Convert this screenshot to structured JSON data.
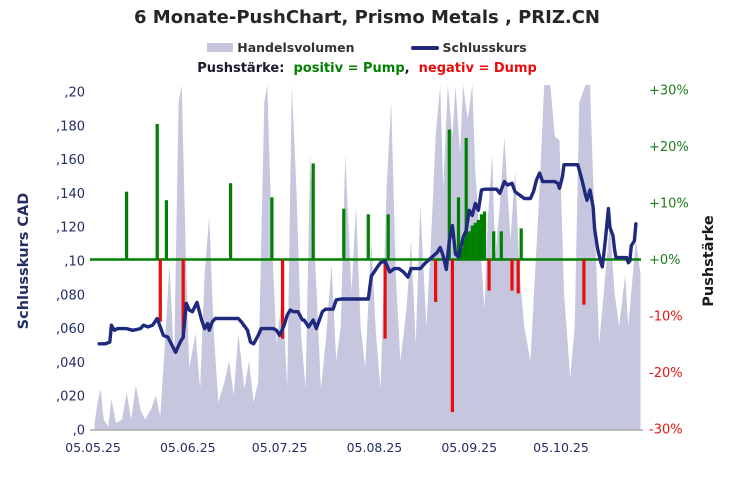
{
  "title": "6 Monate-PushChart,  Prismo Metals , PRIZ.CN",
  "legend": {
    "volume_label": "Handelsvolumen",
    "close_label": "Schlusskurs"
  },
  "subtitle": {
    "prefix": "Pushstärke:",
    "positive": "positiv = Pump",
    "separator": ",",
    "negative": "negativ = Dump"
  },
  "colors": {
    "volume_area": "#c7c6df",
    "close_line": "#1f2a7e",
    "positive": "#008000",
    "negative": "#e80c0c",
    "zero_line": "#008000",
    "axis_navy": "#232d66",
    "title_text": "#262626",
    "baseline_gray": "#ababab",
    "right_pos_label": "#1e7d1e",
    "right_neg_label": "#e81414"
  },
  "axes": {
    "left_title": "Schlusskurs CAD",
    "right_title": "Pushstärke",
    "left_ticks": [
      {
        "label": ",20",
        "v": 0.2
      },
      {
        "label": ",180",
        "v": 0.18
      },
      {
        "label": ",160",
        "v": 0.16
      },
      {
        "label": ",140",
        "v": 0.14
      },
      {
        "label": ",120",
        "v": 0.12
      },
      {
        "label": ",10",
        "v": 0.1
      },
      {
        "label": ",080",
        "v": 0.08
      },
      {
        "label": ",060",
        "v": 0.06
      },
      {
        "label": ",040",
        "v": 0.04
      },
      {
        "label": ",020",
        "v": 0.02
      },
      {
        "label": ",0",
        "v": 0.0
      }
    ],
    "right_ticks": [
      {
        "label": "+30%",
        "p": 30
      },
      {
        "label": "+20%",
        "p": 20
      },
      {
        "label": "+10%",
        "p": 10
      },
      {
        "label": "+0%",
        "p": 0
      },
      {
        "label": "-10%",
        "p": -10
      },
      {
        "label": "-20%",
        "p": -20
      },
      {
        "label": "-30%",
        "p": -30
      }
    ],
    "x_ticks": [
      {
        "label": "05.05.25",
        "d": 0
      },
      {
        "label": "05.06.25",
        "d": 31
      },
      {
        "label": "05.07.25",
        "d": 61
      },
      {
        "label": "05.08.25",
        "d": 92
      },
      {
        "label": "05.09.25",
        "d": 123
      },
      {
        "label": "05.10.25",
        "d": 153
      }
    ]
  },
  "chart_data": {
    "type": "composite",
    "x_unit": "days_since_05.05.25",
    "x_range": [
      0,
      179
    ],
    "left_axis": {
      "label": "Schlusskurs CAD",
      "range": [
        0,
        0.2
      ]
    },
    "right_axis": {
      "label": "Pushstärke",
      "range": [
        -30,
        30
      ],
      "unit": "%"
    },
    "series": [
      {
        "name": "Handelsvolumen",
        "type": "area",
        "unit": "relative_percent_of_max",
        "points": [
          [
            0.5,
            2
          ],
          [
            1.5,
            8
          ],
          [
            2.5,
            12
          ],
          [
            3.5,
            3
          ],
          [
            5,
            1
          ],
          [
            6,
            9
          ],
          [
            7.5,
            2
          ],
          [
            9.5,
            3
          ],
          [
            11,
            11
          ],
          [
            12.5,
            3
          ],
          [
            14,
            13
          ],
          [
            15.5,
            6
          ],
          [
            17,
            3
          ],
          [
            19,
            6
          ],
          [
            20.5,
            10
          ],
          [
            22,
            4
          ],
          [
            23.5,
            25
          ],
          [
            25,
            48
          ],
          [
            26.5,
            20
          ],
          [
            28,
            95
          ],
          [
            29,
            100
          ],
          [
            30.5,
            45
          ],
          [
            31.5,
            18
          ],
          [
            33.5,
            28
          ],
          [
            35,
            12
          ],
          [
            36.5,
            45
          ],
          [
            38,
            62
          ],
          [
            39.5,
            28
          ],
          [
            41,
            8
          ],
          [
            43,
            14
          ],
          [
            44.5,
            20
          ],
          [
            46,
            10
          ],
          [
            47.5,
            28
          ],
          [
            49.5,
            12
          ],
          [
            51,
            20
          ],
          [
            52.5,
            8
          ],
          [
            54,
            14
          ],
          [
            56,
            95
          ],
          [
            57,
            100
          ],
          [
            58.5,
            55
          ],
          [
            60,
            25
          ],
          [
            62,
            40
          ],
          [
            63.5,
            12
          ],
          [
            65,
            100
          ],
          [
            66.5,
            70
          ],
          [
            68,
            28
          ],
          [
            69.5,
            12
          ],
          [
            71,
            80
          ],
          [
            73,
            42
          ],
          [
            74.5,
            12
          ],
          [
            76,
            25
          ],
          [
            78,
            48
          ],
          [
            79.5,
            20
          ],
          [
            81,
            30
          ],
          [
            82.5,
            80
          ],
          [
            84.5,
            40
          ],
          [
            86,
            65
          ],
          [
            87.5,
            30
          ],
          [
            89,
            18
          ],
          [
            91,
            55
          ],
          [
            92.5,
            28
          ],
          [
            94,
            12
          ],
          [
            96,
            70
          ],
          [
            97.5,
            95
          ],
          [
            99,
            45
          ],
          [
            100.5,
            20
          ],
          [
            102.5,
            35
          ],
          [
            104,
            55
          ],
          [
            105.5,
            25
          ],
          [
            107,
            65
          ],
          [
            109,
            30
          ],
          [
            110.5,
            55
          ],
          [
            112,
            85
          ],
          [
            113.5,
            100
          ],
          [
            114.5,
            70
          ],
          [
            116,
            100
          ],
          [
            117.5,
            85
          ],
          [
            118.5,
            100
          ],
          [
            120,
            80
          ],
          [
            121,
            100
          ],
          [
            122.5,
            90
          ],
          [
            124,
            100
          ],
          [
            125,
            75
          ],
          [
            126.5,
            55
          ],
          [
            128,
            35
          ],
          [
            129,
            60
          ],
          [
            130.5,
            80
          ],
          [
            131.5,
            50
          ],
          [
            133,
            65
          ],
          [
            134.5,
            85
          ],
          [
            136.5,
            55
          ],
          [
            138,
            75
          ],
          [
            139.5,
            45
          ],
          [
            141,
            30
          ],
          [
            143,
            20
          ],
          [
            144.5,
            45
          ],
          [
            146,
            70
          ],
          [
            147.5,
            100
          ],
          [
            149.5,
            100
          ],
          [
            151,
            85
          ],
          [
            152.5,
            84
          ],
          [
            154,
            40
          ],
          [
            156,
            15
          ],
          [
            157.5,
            30
          ],
          [
            159,
            95
          ],
          [
            161,
            100
          ],
          [
            162.5,
            100
          ],
          [
            164,
            60
          ],
          [
            165.5,
            25
          ],
          [
            167.5,
            45
          ],
          [
            169,
            60
          ],
          [
            170.5,
            40
          ],
          [
            172,
            30
          ],
          [
            174,
            45
          ],
          [
            175,
            30
          ],
          [
            176,
            40
          ],
          [
            177.5,
            55
          ],
          [
            179,
            45
          ]
        ]
      },
      {
        "name": "Schlusskurs",
        "type": "line",
        "unit": "CAD",
        "points": [
          [
            2,
            0.051
          ],
          [
            4,
            0.051
          ],
          [
            5.5,
            0.052
          ],
          [
            6,
            0.062
          ],
          [
            7,
            0.059
          ],
          [
            8,
            0.06
          ],
          [
            11,
            0.06
          ],
          [
            13,
            0.059
          ],
          [
            15.5,
            0.06
          ],
          [
            16.5,
            0.062
          ],
          [
            18,
            0.061
          ],
          [
            19.5,
            0.062
          ],
          [
            21,
            0.066
          ],
          [
            23,
            0.056
          ],
          [
            24.5,
            0.055
          ],
          [
            27,
            0.046
          ],
          [
            28.5,
            0.052
          ],
          [
            29.5,
            0.055
          ],
          [
            30.5,
            0.075
          ],
          [
            31.5,
            0.071
          ],
          [
            32.5,
            0.07
          ],
          [
            34,
            0.0755
          ],
          [
            35.5,
            0.065
          ],
          [
            36.5,
            0.06
          ],
          [
            37.5,
            0.063
          ],
          [
            38,
            0.059
          ],
          [
            39,
            0.064
          ],
          [
            40,
            0.066
          ],
          [
            47.5,
            0.066
          ],
          [
            48.5,
            0.064
          ],
          [
            50.5,
            0.059
          ],
          [
            51.5,
            0.052
          ],
          [
            52.5,
            0.051
          ],
          [
            54,
            0.056
          ],
          [
            55,
            0.06
          ],
          [
            59,
            0.06
          ],
          [
            60,
            0.059
          ],
          [
            61,
            0.056
          ],
          [
            62.5,
            0.062
          ],
          [
            63.5,
            0.068
          ],
          [
            64.5,
            0.071
          ],
          [
            65.5,
            0.07
          ],
          [
            67,
            0.07
          ],
          [
            68.5,
            0.065
          ],
          [
            69,
            0.065
          ],
          [
            70.5,
            0.061
          ],
          [
            72,
            0.065
          ],
          [
            73,
            0.06
          ],
          [
            75,
            0.07
          ],
          [
            76,
            0.0715
          ],
          [
            78.5,
            0.0715
          ],
          [
            79.5,
            0.077
          ],
          [
            81,
            0.0775
          ],
          [
            90,
            0.0775
          ],
          [
            91,
            0.091
          ],
          [
            93,
            0.0965
          ],
          [
            94,
            0.099
          ],
          [
            95.5,
            0.1
          ],
          [
            97,
            0.0935
          ],
          [
            98.5,
            0.0955
          ],
          [
            100,
            0.0955
          ],
          [
            101.5,
            0.0935
          ],
          [
            103,
            0.0905
          ],
          [
            104,
            0.0955
          ],
          [
            107,
            0.0955
          ],
          [
            108.5,
            0.0985
          ],
          [
            110,
            0.101
          ],
          [
            112.5,
            0.105
          ],
          [
            113.5,
            0.108
          ],
          [
            114.5,
            0.103
          ],
          [
            115.5,
            0.095
          ],
          [
            116.5,
            0.112
          ],
          [
            117.5,
            0.121
          ],
          [
            118.5,
            0.104
          ],
          [
            119.5,
            0.1025
          ],
          [
            120.5,
            0.11
          ],
          [
            121,
            0.114
          ],
          [
            122,
            0.118
          ],
          [
            123,
            0.13
          ],
          [
            124,
            0.127
          ],
          [
            125,
            0.134
          ],
          [
            126,
            0.13
          ],
          [
            127,
            0.142
          ],
          [
            128,
            0.1425
          ],
          [
            132,
            0.1425
          ],
          [
            133,
            0.14
          ],
          [
            134.5,
            0.147
          ],
          [
            135.5,
            0.145
          ],
          [
            137,
            0.146
          ],
          [
            138,
            0.141
          ],
          [
            139.5,
            0.139
          ],
          [
            141,
            0.137
          ],
          [
            143,
            0.137
          ],
          [
            144,
            0.141
          ],
          [
            145,
            0.148
          ],
          [
            146,
            0.152
          ],
          [
            147,
            0.147
          ],
          [
            149.5,
            0.147
          ],
          [
            151,
            0.147
          ],
          [
            152,
            0.146
          ],
          [
            152.5,
            0.143
          ],
          [
            153.5,
            0.15
          ],
          [
            154,
            0.157
          ],
          [
            158.5,
            0.157
          ],
          [
            160,
            0.147
          ],
          [
            161,
            0.139
          ],
          [
            161.5,
            0.136
          ],
          [
            162.5,
            0.142
          ],
          [
            163.5,
            0.132
          ],
          [
            164,
            0.119
          ],
          [
            165,
            0.107
          ],
          [
            166,
            0.0995
          ],
          [
            166.5,
            0.0965
          ],
          [
            167.5,
            0.112
          ],
          [
            168.5,
            0.131
          ],
          [
            169,
            0.12
          ],
          [
            170,
            0.115
          ],
          [
            170.5,
            0.107
          ],
          [
            171,
            0.102
          ],
          [
            174.5,
            0.102
          ],
          [
            175,
            0.099
          ],
          [
            175.5,
            0.1
          ],
          [
            176,
            0.109
          ],
          [
            177,
            0.112
          ],
          [
            177.5,
            0.122
          ]
        ]
      },
      {
        "name": "Pushstärke positiv (Pump)",
        "type": "bar",
        "unit": "%",
        "points": [
          [
            11,
            12
          ],
          [
            21,
            24
          ],
          [
            24,
            10.5
          ],
          [
            45,
            13.5
          ],
          [
            58.5,
            11
          ],
          [
            72,
            17
          ],
          [
            82,
            9
          ],
          [
            90,
            8
          ],
          [
            96.5,
            8
          ],
          [
            116.5,
            23
          ],
          [
            119.5,
            11
          ],
          [
            120.5,
            2
          ],
          [
            121.5,
            3.5
          ],
          [
            122,
            21.5
          ],
          [
            123,
            5
          ],
          [
            124,
            6
          ],
          [
            125,
            6.5
          ],
          [
            126,
            7
          ],
          [
            127,
            8
          ],
          [
            128,
            8.5
          ],
          [
            131,
            5
          ],
          [
            133.5,
            5
          ],
          [
            140,
            5.5
          ]
        ]
      },
      {
        "name": "Pushstärke negativ (Dump)",
        "type": "bar",
        "unit": "%",
        "points": [
          [
            22,
            -11
          ],
          [
            29.5,
            -14
          ],
          [
            62,
            -14
          ],
          [
            95.5,
            -14
          ],
          [
            112,
            -7.5
          ],
          [
            117.5,
            -27
          ],
          [
            129.5,
            -5.5
          ],
          [
            137,
            -5.5
          ],
          [
            139,
            -6
          ],
          [
            160.5,
            -8
          ]
        ]
      }
    ],
    "annotations": {
      "zero_line_at_price": 0.1,
      "zero_line_at_push_pct": 0
    }
  }
}
